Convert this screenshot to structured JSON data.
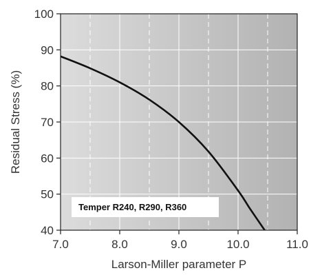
{
  "chart_data": {
    "type": "line",
    "xlabel": "Larson-Miller parameter P",
    "ylabel": "Residual Stress (%)",
    "xlim": [
      7.0,
      11.0
    ],
    "ylim": [
      40,
      100
    ],
    "xticks": [
      "7.0",
      "8.0",
      "9.0",
      "10.0",
      "11.0"
    ],
    "yticks": [
      "40",
      "50",
      "60",
      "70",
      "80",
      "90",
      "100"
    ],
    "grid": true,
    "series": [
      {
        "x": [
          7.0,
          7.5,
          8.0,
          8.5,
          9.0,
          9.5,
          10.0,
          10.2,
          10.45
        ],
        "y": [
          88.2,
          84.9,
          81.0,
          76.2,
          70.0,
          61.8,
          51.0,
          46.0,
          40.0
        ]
      }
    ],
    "annotation": "Temper R240, R290, R360",
    "colors": {
      "line": "#111111",
      "background_light": "#d8d8d8",
      "background_dark": "#b4b4b4",
      "grid": "#ffffff"
    }
  }
}
